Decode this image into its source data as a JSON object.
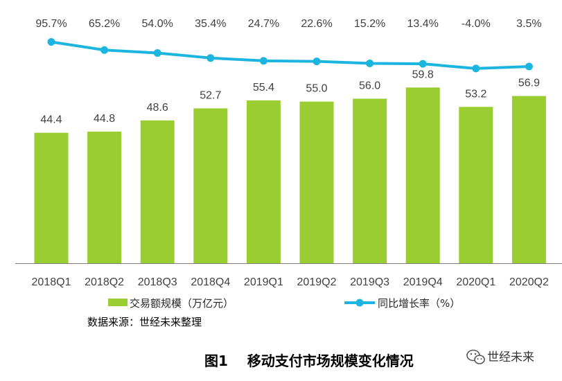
{
  "chart_data": {
    "type": "bar",
    "categories": [
      "2018Q1",
      "2018Q2",
      "2018Q3",
      "2018Q4",
      "2019Q1",
      "2019Q2",
      "2019Q3",
      "2019Q4",
      "2020Q1",
      "2020Q2"
    ],
    "series": [
      {
        "name": "交易额规模（万亿元）",
        "type": "bar",
        "values": [
          44.4,
          44.8,
          48.6,
          52.7,
          55.4,
          55.0,
          56.0,
          59.8,
          53.2,
          56.9
        ],
        "labels": [
          "44.4",
          "44.8",
          "48.6",
          "52.7",
          "55.4",
          "55.0",
          "56.0",
          "59.8",
          "53.2",
          "56.9"
        ],
        "color": "#9acd32"
      },
      {
        "name": "同比增长率（%）",
        "type": "line",
        "values": [
          95.7,
          65.2,
          54.0,
          35.4,
          24.7,
          22.6,
          15.2,
          13.4,
          -4.0,
          3.5
        ],
        "labels": [
          "95.7%",
          "65.2%",
          "54.0%",
          "35.4%",
          "24.7%",
          "22.6%",
          "15.2%",
          "13.4%",
          "-4.0%",
          "3.5%"
        ],
        "color": "#1cb5e0"
      }
    ],
    "ylim": [
      0,
      66
    ],
    "y2lim": [
      -150,
      110
    ],
    "legend_position": "bottom",
    "source": "数据来源：世经未来整理",
    "caption": "图1    移动支付市场规模变化情况",
    "watermark": "世经未来"
  },
  "colors": {
    "bar": "#9acd32",
    "line": "#1cb5e0",
    "axis": "#7f7f7f",
    "text": "#404040"
  }
}
